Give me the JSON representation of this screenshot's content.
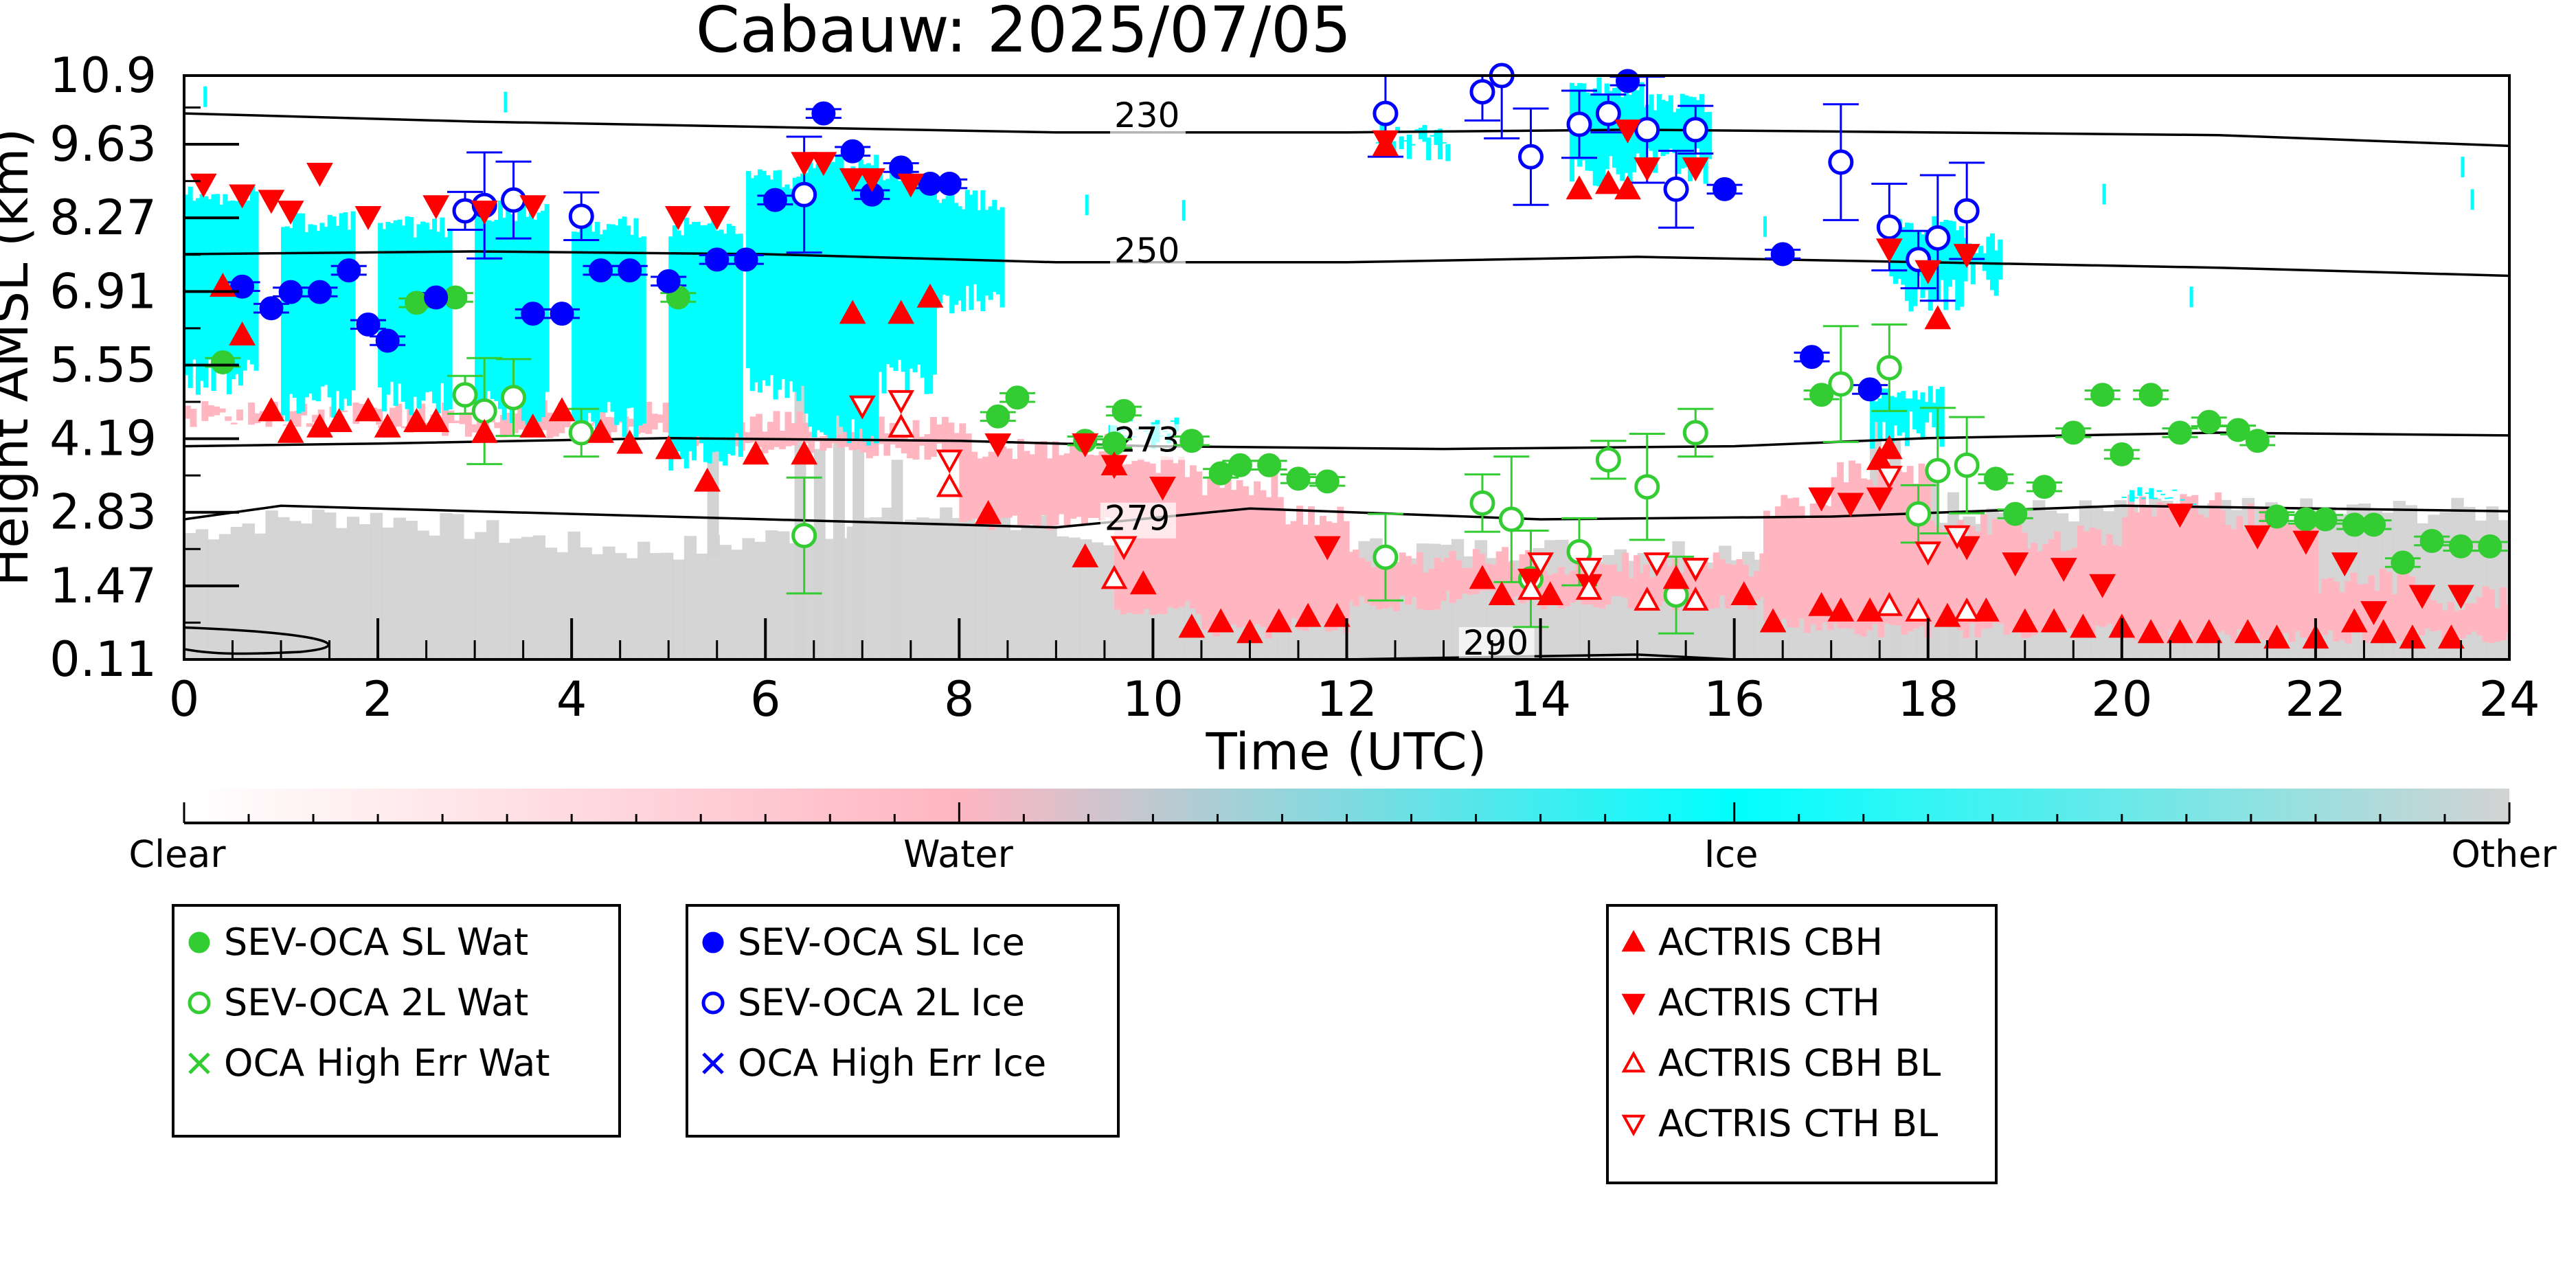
{
  "chart_data": {
    "type": "scatter",
    "title": "Cabauw: 2025/07/05",
    "xlabel": "Time (UTC)",
    "ylabel": "Height AMSL (km)",
    "xlim": [
      0,
      24
    ],
    "ylim": [
      0.11,
      10.9
    ],
    "xticks": [
      "0",
      "2",
      "4",
      "6",
      "8",
      "10",
      "12",
      "14",
      "16",
      "18",
      "20",
      "22",
      "24"
    ],
    "yticks": [
      "0.11",
      "1.47",
      "2.83",
      "4.19",
      "5.55",
      "6.91",
      "8.27",
      "9.63",
      "10.9"
    ],
    "colorbar": {
      "labels": [
        "Clear",
        "Water",
        "Ice",
        "Other"
      ],
      "colors": {
        "clear": "#ffffff",
        "water": "#ffb6c1",
        "ice": "#00ffff",
        "other": "#d3d3d3"
      }
    },
    "contours": [
      {
        "label": "230",
        "points": [
          [
            0,
            10.2
          ],
          [
            3,
            10.05
          ],
          [
            6,
            9.95
          ],
          [
            9,
            9.85
          ],
          [
            12,
            9.85
          ],
          [
            15,
            9.9
          ],
          [
            18,
            9.85
          ],
          [
            21,
            9.8
          ],
          [
            24,
            9.6
          ]
        ]
      },
      {
        "label": "250",
        "points": [
          [
            0,
            7.6
          ],
          [
            3,
            7.65
          ],
          [
            6,
            7.6
          ],
          [
            9,
            7.45
          ],
          [
            12,
            7.45
          ],
          [
            15,
            7.55
          ],
          [
            18,
            7.45
          ],
          [
            21,
            7.35
          ],
          [
            24,
            7.2
          ]
        ]
      },
      {
        "label": "273",
        "points": [
          [
            0,
            4.05
          ],
          [
            2,
            4.1
          ],
          [
            5,
            4.2
          ],
          [
            8,
            4.15
          ],
          [
            10,
            4.05
          ],
          [
            13,
            4.0
          ],
          [
            16,
            4.05
          ],
          [
            18,
            4.2
          ],
          [
            21,
            4.3
          ],
          [
            24,
            4.25
          ]
        ]
      },
      {
        "label": "279",
        "points": [
          [
            0,
            2.7
          ],
          [
            1,
            2.95
          ],
          [
            3,
            2.85
          ],
          [
            6,
            2.7
          ],
          [
            9,
            2.55
          ],
          [
            11,
            2.9
          ],
          [
            14,
            2.7
          ],
          [
            17,
            2.75
          ],
          [
            20,
            2.95
          ],
          [
            24,
            2.85
          ]
        ]
      },
      {
        "label": "290",
        "points": [
          [
            12,
            0.11
          ],
          [
            15,
            0.2
          ],
          [
            16,
            0.11
          ]
        ]
      }
    ],
    "series": [
      {
        "name": "SEV-OCA SL Wat",
        "color": "#33cc33",
        "marker": "circle-filled",
        "points": [
          [
            0.4,
            5.6
          ],
          [
            2.4,
            6.7
          ],
          [
            2.8,
            6.8
          ],
          [
            5.1,
            6.8
          ],
          [
            8.4,
            4.6
          ],
          [
            8.6,
            4.95
          ],
          [
            9.3,
            4.15
          ],
          [
            9.6,
            4.1
          ],
          [
            9.7,
            4.7
          ],
          [
            10.4,
            4.15
          ],
          [
            10.7,
            3.55
          ],
          [
            10.9,
            3.7
          ],
          [
            11.2,
            3.7
          ],
          [
            11.5,
            3.45
          ],
          [
            11.8,
            3.4
          ],
          [
            16.9,
            5.0
          ],
          [
            18.7,
            3.45
          ],
          [
            18.9,
            2.8
          ],
          [
            19.2,
            3.3
          ],
          [
            19.5,
            4.3
          ],
          [
            19.8,
            5.0
          ],
          [
            20.0,
            3.9
          ],
          [
            20.3,
            5.0
          ],
          [
            20.6,
            4.3
          ],
          [
            20.9,
            4.5
          ],
          [
            21.2,
            4.35
          ],
          [
            21.4,
            4.15
          ],
          [
            21.6,
            2.75
          ],
          [
            21.9,
            2.7
          ],
          [
            22.1,
            2.7
          ],
          [
            22.4,
            2.6
          ],
          [
            22.6,
            2.6
          ],
          [
            22.9,
            1.9
          ],
          [
            23.2,
            2.3
          ],
          [
            23.5,
            2.2
          ],
          [
            23.8,
            2.2
          ]
        ]
      },
      {
        "name": "SEV-OCA 2L Wat",
        "color": "#33cc33",
        "marker": "circle-open",
        "points": [
          [
            2.9,
            5.0
          ],
          [
            3.1,
            4.7
          ],
          [
            3.4,
            4.95
          ],
          [
            4.1,
            4.3
          ],
          [
            6.4,
            2.4
          ],
          [
            12.4,
            2.0
          ],
          [
            13.4,
            3.0
          ],
          [
            13.7,
            2.7
          ],
          [
            13.9,
            1.6
          ],
          [
            14.4,
            2.1
          ],
          [
            14.7,
            3.8
          ],
          [
            15.1,
            3.3
          ],
          [
            15.4,
            1.3
          ],
          [
            15.6,
            4.3
          ],
          [
            17.1,
            5.2
          ],
          [
            17.6,
            5.5
          ],
          [
            17.9,
            2.8
          ],
          [
            18.1,
            3.6
          ],
          [
            18.4,
            3.7
          ]
        ]
      },
      {
        "name": "OCA High Err Wat",
        "color": "#33cc33",
        "marker": "x",
        "points": []
      },
      {
        "name": "SEV-OCA SL Ice",
        "color": "#0000ff",
        "marker": "circle-filled",
        "points": [
          [
            0.6,
            7.0
          ],
          [
            0.9,
            6.6
          ],
          [
            1.1,
            6.9
          ],
          [
            1.4,
            6.9
          ],
          [
            1.7,
            7.3
          ],
          [
            1.9,
            6.3
          ],
          [
            2.1,
            6.0
          ],
          [
            2.6,
            6.8
          ],
          [
            3.6,
            6.5
          ],
          [
            3.9,
            6.5
          ],
          [
            4.3,
            7.3
          ],
          [
            4.6,
            7.3
          ],
          [
            5.0,
            7.1
          ],
          [
            5.5,
            7.5
          ],
          [
            5.8,
            7.5
          ],
          [
            6.1,
            8.6
          ],
          [
            6.6,
            10.2
          ],
          [
            6.9,
            9.5
          ],
          [
            7.1,
            8.7
          ],
          [
            7.4,
            9.2
          ],
          [
            7.7,
            8.9
          ],
          [
            7.9,
            8.9
          ],
          [
            14.9,
            10.8
          ],
          [
            15.9,
            8.8
          ],
          [
            16.5,
            7.6
          ],
          [
            16.8,
            5.7
          ],
          [
            17.4,
            5.1
          ]
        ]
      },
      {
        "name": "SEV-OCA 2L Ice",
        "color": "#0000ff",
        "marker": "circle-open",
        "points": [
          [
            2.9,
            8.4
          ],
          [
            3.1,
            8.5
          ],
          [
            3.4,
            8.6
          ],
          [
            4.1,
            8.3
          ],
          [
            6.4,
            8.7
          ],
          [
            12.4,
            10.2
          ],
          [
            13.4,
            10.6
          ],
          [
            13.6,
            10.9
          ],
          [
            13.9,
            9.4
          ],
          [
            14.4,
            10.0
          ],
          [
            14.7,
            10.2
          ],
          [
            15.1,
            9.9
          ],
          [
            15.4,
            8.8
          ],
          [
            15.6,
            9.9
          ],
          [
            17.1,
            9.3
          ],
          [
            17.6,
            8.1
          ],
          [
            17.9,
            7.5
          ],
          [
            18.1,
            7.9
          ],
          [
            18.4,
            8.4
          ]
        ]
      },
      {
        "name": "OCA High Err Ice",
        "color": "#0000ff",
        "marker": "x",
        "points": []
      },
      {
        "name": "ACTRIS CBH",
        "color": "#ff0000",
        "marker": "triangle-up-filled",
        "points": [
          [
            0.4,
            7.0
          ],
          [
            0.6,
            6.1
          ],
          [
            0.9,
            4.7
          ],
          [
            1.1,
            4.3
          ],
          [
            1.4,
            4.4
          ],
          [
            1.6,
            4.5
          ],
          [
            1.9,
            4.7
          ],
          [
            2.1,
            4.4
          ],
          [
            2.4,
            4.5
          ],
          [
            2.6,
            4.5
          ],
          [
            3.1,
            4.3
          ],
          [
            3.6,
            4.4
          ],
          [
            3.9,
            4.7
          ],
          [
            4.3,
            4.3
          ],
          [
            4.6,
            4.1
          ],
          [
            5.0,
            4.0
          ],
          [
            5.4,
            3.4
          ],
          [
            5.9,
            3.9
          ],
          [
            6.4,
            3.9
          ],
          [
            6.9,
            6.5
          ],
          [
            7.4,
            6.5
          ],
          [
            7.7,
            6.8
          ],
          [
            8.3,
            2.8
          ],
          [
            9.3,
            2.0
          ],
          [
            9.6,
            3.7
          ],
          [
            9.9,
            1.5
          ],
          [
            10.4,
            0.7
          ],
          [
            10.7,
            0.8
          ],
          [
            11.0,
            0.6
          ],
          [
            11.3,
            0.8
          ],
          [
            11.6,
            0.9
          ],
          [
            11.9,
            0.9
          ],
          [
            12.4,
            9.6
          ],
          [
            13.4,
            1.6
          ],
          [
            13.6,
            1.3
          ],
          [
            14.1,
            1.3
          ],
          [
            14.4,
            8.8
          ],
          [
            14.7,
            8.9
          ],
          [
            14.9,
            8.8
          ],
          [
            15.4,
            1.6
          ],
          [
            16.1,
            1.3
          ],
          [
            16.4,
            0.8
          ],
          [
            16.9,
            1.1
          ],
          [
            17.1,
            1.0
          ],
          [
            17.4,
            1.0
          ],
          [
            17.5,
            3.8
          ],
          [
            17.6,
            4.0
          ],
          [
            18.1,
            6.4
          ],
          [
            18.2,
            0.9
          ],
          [
            18.6,
            1.0
          ],
          [
            19.0,
            0.8
          ],
          [
            19.3,
            0.8
          ],
          [
            19.6,
            0.7
          ],
          [
            20.0,
            0.7
          ],
          [
            20.3,
            0.6
          ],
          [
            20.6,
            0.6
          ],
          [
            20.9,
            0.6
          ],
          [
            21.3,
            0.6
          ],
          [
            21.6,
            0.5
          ],
          [
            22.0,
            0.5
          ],
          [
            22.4,
            0.8
          ],
          [
            22.7,
            0.6
          ],
          [
            23.0,
            0.5
          ],
          [
            23.4,
            0.5
          ]
        ]
      },
      {
        "name": "ACTRIS CTH",
        "color": "#ff0000",
        "marker": "triangle-down-filled",
        "points": [
          [
            0.2,
            8.9
          ],
          [
            0.6,
            8.7
          ],
          [
            0.9,
            8.6
          ],
          [
            1.1,
            8.4
          ],
          [
            1.4,
            9.1
          ],
          [
            1.9,
            8.3
          ],
          [
            2.6,
            8.5
          ],
          [
            3.1,
            8.4
          ],
          [
            3.6,
            8.5
          ],
          [
            5.1,
            8.3
          ],
          [
            5.5,
            8.3
          ],
          [
            6.4,
            9.3
          ],
          [
            6.6,
            9.3
          ],
          [
            6.9,
            9.0
          ],
          [
            7.1,
            9.0
          ],
          [
            7.5,
            8.9
          ],
          [
            12.4,
            9.7
          ],
          [
            14.9,
            9.9
          ],
          [
            15.1,
            9.2
          ],
          [
            15.6,
            9.2
          ],
          [
            17.6,
            7.7
          ],
          [
            18.0,
            7.3
          ],
          [
            18.4,
            7.6
          ],
          [
            8.4,
            4.1
          ],
          [
            9.3,
            4.1
          ],
          [
            9.6,
            3.7
          ],
          [
            10.1,
            3.3
          ],
          [
            11.8,
            2.2
          ],
          [
            13.9,
            1.6
          ],
          [
            14.5,
            1.5
          ],
          [
            15.6,
            1.8
          ],
          [
            16.9,
            3.1
          ],
          [
            17.2,
            3.0
          ],
          [
            17.5,
            3.1
          ],
          [
            18.4,
            2.2
          ],
          [
            18.9,
            1.9
          ],
          [
            19.4,
            1.8
          ],
          [
            19.8,
            1.5
          ],
          [
            20.6,
            2.8
          ],
          [
            21.4,
            2.4
          ],
          [
            21.9,
            2.3
          ],
          [
            22.3,
            1.9
          ],
          [
            22.6,
            1.0
          ],
          [
            23.1,
            1.3
          ],
          [
            23.5,
            1.3
          ]
        ]
      },
      {
        "name": "ACTRIS CBH BL",
        "color": "#ff0000",
        "marker": "triangle-up-open",
        "points": [
          [
            7.4,
            4.4
          ],
          [
            7.9,
            3.3
          ],
          [
            9.6,
            1.6
          ],
          [
            13.9,
            1.4
          ],
          [
            14.5,
            1.4
          ],
          [
            15.1,
            1.2
          ],
          [
            15.6,
            1.2
          ],
          [
            17.6,
            1.1
          ],
          [
            17.9,
            1.0
          ],
          [
            18.4,
            1.0
          ]
        ]
      },
      {
        "name": "ACTRIS CTH BL",
        "color": "#ff0000",
        "marker": "triangle-down-open",
        "points": [
          [
            7.0,
            4.8
          ],
          [
            7.4,
            4.9
          ],
          [
            7.9,
            3.8
          ],
          [
            9.7,
            2.2
          ],
          [
            14.0,
            1.9
          ],
          [
            14.5,
            1.8
          ],
          [
            15.2,
            1.9
          ],
          [
            15.6,
            1.8
          ],
          [
            17.6,
            3.5
          ],
          [
            18.0,
            2.1
          ],
          [
            18.3,
            2.4
          ]
        ]
      }
    ],
    "legend": {
      "boxes": [
        [
          "SEV-OCA SL Wat",
          "SEV-OCA 2L Wat",
          "OCA High Err Wat"
        ],
        [
          "SEV-OCA SL Ice",
          "SEV-OCA 2L Ice",
          "OCA High Err Ice"
        ],
        [
          "ACTRIS CBH",
          "ACTRIS CTH",
          "ACTRIS CBH BL",
          "ACTRIS CTH BL"
        ]
      ],
      "placement": "below"
    },
    "grid": false
  }
}
